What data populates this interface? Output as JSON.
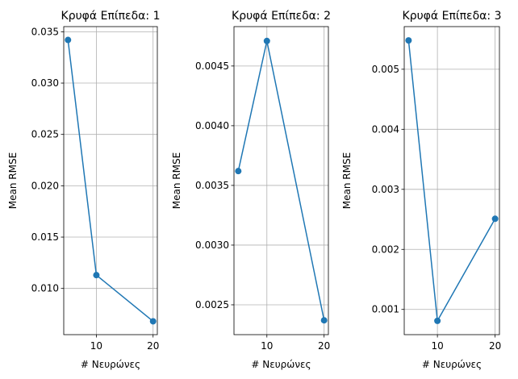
{
  "chart_data": [
    {
      "type": "line",
      "title": "Κρυφά Επίπεδα: 1",
      "xlabel": "# Νευρώνες",
      "ylabel": "Mean RMSE",
      "grid": true,
      "color": "#1f77b4",
      "x": [
        5,
        10,
        20
      ],
      "y": [
        0.0342,
        0.0113,
        0.0068
      ],
      "xlim": [
        4.25,
        20.75
      ],
      "ylim": [
        0.0055,
        0.0355
      ],
      "xticks": [
        10,
        20
      ],
      "yticks": [
        0.01,
        0.015,
        0.02,
        0.025,
        0.03,
        0.035
      ],
      "ytick_labels": [
        "0.010",
        "0.015",
        "0.020",
        "0.025",
        "0.030",
        "0.035"
      ]
    },
    {
      "type": "line",
      "title": "Κρυφά Επίπεδα: 2",
      "xlabel": "# Νευρώνες",
      "ylabel": "Mean RMSE",
      "grid": true,
      "color": "#1f77b4",
      "x": [
        5,
        10,
        20
      ],
      "y": [
        0.00362,
        0.00471,
        0.00237
      ],
      "xlim": [
        4.25,
        20.75
      ],
      "ylim": [
        0.00225,
        0.00483
      ],
      "xticks": [
        10,
        20
      ],
      "yticks": [
        0.0025,
        0.003,
        0.0035,
        0.004,
        0.0045
      ],
      "ytick_labels": [
        "0.0025",
        "0.0030",
        "0.0035",
        "0.0040",
        "0.0045"
      ]
    },
    {
      "type": "line",
      "title": "Κρυφά Επίπεδα: 3",
      "xlabel": "# Νευρώνες",
      "ylabel": "Mean RMSE",
      "grid": true,
      "color": "#1f77b4",
      "x": [
        5,
        10,
        20
      ],
      "y": [
        0.00548,
        0.00081,
        0.00251
      ],
      "xlim": [
        4.25,
        20.75
      ],
      "ylim": [
        0.00058,
        0.00571
      ],
      "xticks": [
        10,
        20
      ],
      "yticks": [
        0.001,
        0.002,
        0.003,
        0.004,
        0.005
      ],
      "ytick_labels": [
        "0.001",
        "0.002",
        "0.003",
        "0.004",
        "0.005"
      ]
    }
  ]
}
